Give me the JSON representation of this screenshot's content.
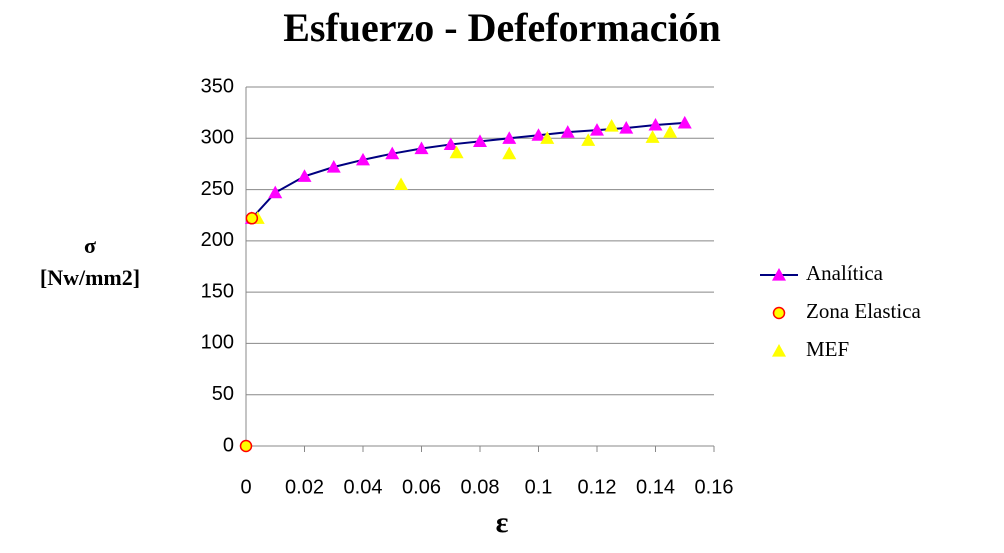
{
  "chart_data": {
    "type": "scatter",
    "title": "Esfuerzo - Defeformación",
    "xlabel": "ε",
    "ylabel": [
      "σ",
      "[Nw/mm2]"
    ],
    "xlim": [
      0,
      0.16
    ],
    "xticks": [
      0,
      0.02,
      0.04,
      0.06,
      0.08,
      0.1,
      0.12,
      0.14,
      0.16
    ],
    "ylim": [
      0,
      350
    ],
    "yticks": [
      0,
      50,
      100,
      150,
      200,
      250,
      300,
      350
    ],
    "grid": true,
    "legend": "right",
    "series": [
      {
        "name": "Analítica",
        "color": "#ff00ff",
        "line_color": "#000080",
        "marker": "triangle",
        "line": true,
        "x": [
          0.002,
          0.01,
          0.02,
          0.03,
          0.04,
          0.05,
          0.06,
          0.07,
          0.08,
          0.09,
          0.1,
          0.11,
          0.12,
          0.13,
          0.14,
          0.15
        ],
        "values": [
          222,
          247,
          263,
          272,
          279,
          285,
          290,
          294,
          297,
          300,
          303,
          306,
          308,
          310,
          313,
          315
        ]
      },
      {
        "name": "Zona Elastica",
        "color": "#ffff00",
        "edge_color": "#ff0000",
        "marker": "circle",
        "line": false,
        "x": [
          0,
          0.002
        ],
        "values": [
          0,
          222
        ]
      },
      {
        "name": "MEF",
        "color": "#ffff00",
        "marker": "triangle",
        "line": false,
        "x": [
          0.004,
          0.053,
          0.072,
          0.09,
          0.103,
          0.117,
          0.125,
          0.139,
          0.145
        ],
        "values": [
          222,
          255,
          286,
          285,
          300,
          298,
          312,
          301,
          306
        ]
      }
    ]
  }
}
